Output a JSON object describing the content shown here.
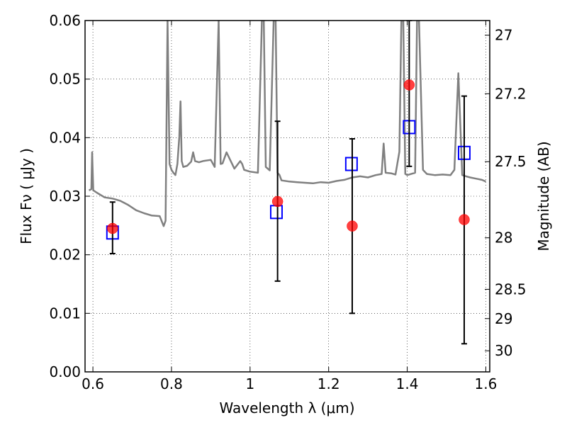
{
  "chart_data": {
    "type": "scatter",
    "xlabel": "Wavelength  λ (μm)",
    "ylabel": "Flux  Fν  ( μJy )",
    "y2label": "Magnitude (AB)",
    "xlim": [
      0.58,
      1.61
    ],
    "ylim": [
      0.0,
      0.06
    ],
    "x_ticks": [
      0.6,
      0.8,
      1.0,
      1.2,
      1.4,
      1.6
    ],
    "x_tick_labels": [
      "0.6",
      "0.8",
      "1",
      "1.2",
      "1.4",
      "1.6"
    ],
    "y_ticks": [
      0.0,
      0.01,
      0.02,
      0.03,
      0.04,
      0.05,
      0.06
    ],
    "y_tick_labels": [
      "0.00",
      "0.01",
      "0.02",
      "0.03",
      "0.04",
      "0.05",
      "0.06"
    ],
    "y2_ticks": [
      {
        "flux": 0.0575,
        "label": "27"
      },
      {
        "flux": 0.0475,
        "label": "27.2"
      },
      {
        "flux": 0.0359,
        "label": "27.5"
      },
      {
        "flux": 0.0229,
        "label": "28"
      },
      {
        "flux": 0.0141,
        "label": "28.5"
      },
      {
        "flux": 0.0091,
        "label": "29"
      },
      {
        "flux": 0.0036,
        "label": "30"
      }
    ],
    "grid": true,
    "series": [
      {
        "role": "model_spectrum",
        "color": "#808080",
        "x": [
          0.59,
          0.596,
          0.598,
          0.601,
          0.61,
          0.63,
          0.65,
          0.67,
          0.69,
          0.71,
          0.73,
          0.75,
          0.77,
          0.78,
          0.785,
          0.79,
          0.795,
          0.8,
          0.805,
          0.81,
          0.815,
          0.82,
          0.823,
          0.826,
          0.83,
          0.84,
          0.85,
          0.855,
          0.86,
          0.87,
          0.88,
          0.9,
          0.91,
          0.92,
          0.925,
          0.93,
          0.94,
          0.96,
          0.975,
          0.98,
          0.985,
          1.0,
          1.02,
          1.03,
          1.035,
          1.04,
          1.05,
          1.06,
          1.065,
          1.07,
          1.075,
          1.08,
          1.1,
          1.12,
          1.14,
          1.16,
          1.18,
          1.2,
          1.22,
          1.24,
          1.26,
          1.28,
          1.3,
          1.32,
          1.335,
          1.34,
          1.345,
          1.36,
          1.37,
          1.38,
          1.385,
          1.39,
          1.395,
          1.4,
          1.42,
          1.425,
          1.43,
          1.44,
          1.45,
          1.47,
          1.49,
          1.51,
          1.52,
          1.53,
          1.54,
          1.55,
          1.56,
          1.575,
          1.59,
          1.6
        ],
        "y": [
          0.031,
          0.0312,
          0.0375,
          0.031,
          0.0306,
          0.0298,
          0.0296,
          0.0292,
          0.0285,
          0.0276,
          0.0271,
          0.0267,
          0.0266,
          0.0249,
          0.0258,
          0.06,
          0.0355,
          0.0345,
          0.034,
          0.0336,
          0.0355,
          0.0402,
          0.0462,
          0.036,
          0.035,
          0.0352,
          0.0359,
          0.0375,
          0.036,
          0.0358,
          0.036,
          0.0362,
          0.035,
          0.06,
          0.0355,
          0.0356,
          0.0375,
          0.0347,
          0.036,
          0.0355,
          0.0345,
          0.0342,
          0.034,
          0.06,
          0.06,
          0.035,
          0.0344,
          0.06,
          0.06,
          0.034,
          0.0336,
          0.0327,
          0.0325,
          0.0324,
          0.0323,
          0.0322,
          0.0324,
          0.0323,
          0.0326,
          0.0328,
          0.0332,
          0.0334,
          0.0332,
          0.0336,
          0.0338,
          0.039,
          0.034,
          0.0339,
          0.0337,
          0.0376,
          0.06,
          0.06,
          0.0338,
          0.0336,
          0.034,
          0.06,
          0.06,
          0.0345,
          0.0338,
          0.0336,
          0.0337,
          0.0336,
          0.0345,
          0.051,
          0.0336,
          0.0334,
          0.0332,
          0.033,
          0.0328,
          0.0325
        ]
      },
      {
        "role": "model_photometry",
        "marker": "open-square",
        "color": "#0000ff",
        "x": [
          0.65,
          1.067,
          1.258,
          1.405,
          1.545
        ],
        "y": [
          0.0238,
          0.0273,
          0.0355,
          0.0418,
          0.0374
        ]
      },
      {
        "role": "observed_photometry",
        "marker": "filled-circle",
        "color": "#ff0000",
        "x": [
          0.65,
          1.07,
          1.26,
          1.405,
          1.545
        ],
        "y": [
          0.0245,
          0.0291,
          0.0249,
          0.049,
          0.026
        ],
        "err_low": [
          0.0202,
          0.0155,
          0.01,
          0.0351,
          0.0048
        ],
        "err_high": [
          0.029,
          0.0428,
          0.0398,
          0.06,
          0.0471
        ]
      }
    ]
  }
}
